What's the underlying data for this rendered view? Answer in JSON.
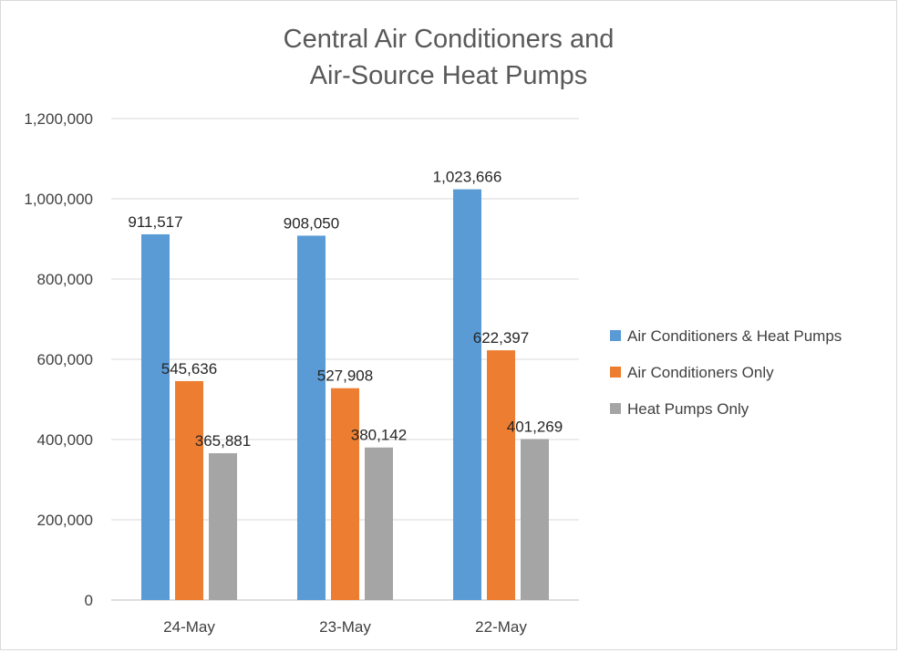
{
  "chart_data": {
    "type": "bar",
    "title_lines": [
      "Central Air Conditioners and",
      "Air-Source Heat Pumps"
    ],
    "categories": [
      "24-May",
      "23-May",
      "22-May"
    ],
    "series": [
      {
        "name": "Air Conditioners & Heat Pumps",
        "values": [
          911517,
          908050,
          1023666
        ],
        "color": "#5b9bd5"
      },
      {
        "name": "Air Conditioners Only",
        "values": [
          545636,
          527908,
          622397
        ],
        "color": "#ed7d31"
      },
      {
        "name": "Heat Pumps Only",
        "values": [
          365881,
          380142,
          401269
        ],
        "color": "#a5a5a5"
      }
    ],
    "data_labels": [
      [
        "911,517",
        "908,050",
        "1,023,666"
      ],
      [
        "545,636",
        "527,908",
        "622,397"
      ],
      [
        "365,881",
        "380,142",
        "401,269"
      ]
    ],
    "ylim": [
      0,
      1200000
    ],
    "yticks": [
      0,
      200000,
      400000,
      600000,
      800000,
      1000000,
      1200000
    ],
    "ytick_labels": [
      "0",
      "200,000",
      "400,000",
      "600,000",
      "800,000",
      "1,000,000",
      "1,200,000"
    ],
    "grid": true,
    "legend_position": "right"
  }
}
